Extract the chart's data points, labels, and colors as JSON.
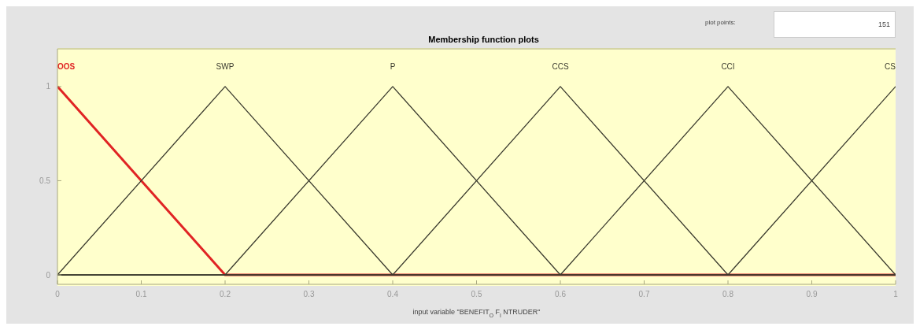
{
  "chart_data": {
    "type": "line",
    "title": "Membership function plots",
    "xlabel": "input variable \"BENEFIT$_{O}$F$_{I}$NTRUDER\"",
    "annotations": [
      "plot points:",
      "151"
    ],
    "series": [
      {
        "name": "OOS",
        "color": "#e02424",
        "x": [
          0,
          0.2,
          1
        ],
        "values": [
          1,
          0,
          0
        ]
      },
      {
        "name": "SWP",
        "color": "#3a3a2e",
        "x": [
          0,
          0.2,
          0.4,
          1
        ],
        "values": [
          0,
          1,
          0,
          0
        ]
      },
      {
        "name": "P",
        "color": "#3a3a2e",
        "x": [
          0,
          0.2,
          0.4,
          0.6,
          1
        ],
        "values": [
          0,
          0,
          1,
          0,
          0
        ]
      },
      {
        "name": "CCS",
        "color": "#3a3a2e",
        "x": [
          0,
          0.4,
          0.6,
          0.8,
          1
        ],
        "values": [
          0,
          0,
          1,
          0,
          0
        ]
      },
      {
        "name": "CCI",
        "color": "#3a3a2e",
        "x": [
          0,
          0.6,
          0.8,
          1
        ],
        "values": [
          0,
          0,
          1,
          0
        ]
      },
      {
        "name": "CS",
        "color": "#3a3a2e",
        "x": [
          0,
          0.8,
          1
        ],
        "values": [
          0,
          0,
          1
        ]
      }
    ],
    "xlim": [
      0,
      1
    ],
    "xticks": [
      0,
      0.1,
      0.2,
      0.3,
      0.4,
      0.5,
      0.6,
      0.7,
      0.8,
      0.9,
      1
    ],
    "ylim": [
      -0.05,
      1.2
    ],
    "yticks": [
      0,
      0.5,
      1
    ],
    "grid": false,
    "legend": false,
    "marker": "none",
    "line_style": "solid"
  }
}
